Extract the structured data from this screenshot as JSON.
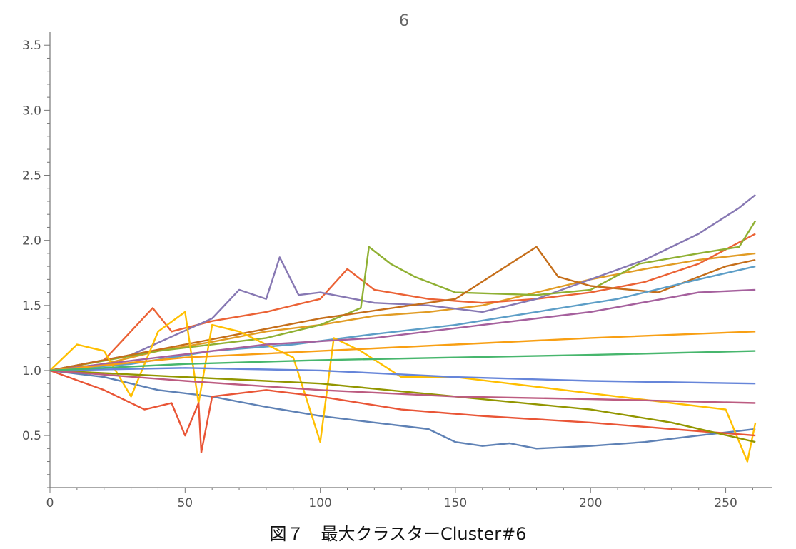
{
  "chart_data": {
    "type": "line",
    "title": "6",
    "xlabel": "",
    "ylabel": "",
    "xlim": [
      0,
      262
    ],
    "ylim": [
      0.1,
      3.6
    ],
    "xticks": [
      0,
      50,
      100,
      150,
      200,
      250
    ],
    "xtick_labels": [
      "0",
      "50",
      "100",
      "150",
      "200",
      "250"
    ],
    "yticks": [
      0.5,
      1.0,
      1.5,
      2.0,
      2.5,
      3.0,
      3.5
    ],
    "ytick_labels": [
      "0.5",
      "1.0",
      "1.5",
      "2.0",
      "2.5",
      "3.0",
      "3.5"
    ],
    "grid": false,
    "legend": "none",
    "palette": [
      "#5e81b5",
      "#e19c24",
      "#8fb032",
      "#eb6235",
      "#8778b3",
      "#c56e1a",
      "#5d9ec7",
      "#ffbf00",
      "#a5609d",
      "#929600",
      "#e95536",
      "#6685d9",
      "#f89f13",
      "#bc5b80",
      "#47b66d"
    ],
    "series": [
      {
        "color": "#e19c24",
        "values": [
          [
            0,
            1.0
          ],
          [
            20,
            1.05
          ],
          [
            40,
            1.15
          ],
          [
            60,
            1.22
          ],
          [
            80,
            1.3
          ],
          [
            100,
            1.35
          ],
          [
            120,
            1.42
          ],
          [
            140,
            1.45
          ],
          [
            160,
            1.5
          ],
          [
            180,
            1.6
          ],
          [
            200,
            1.7
          ],
          [
            220,
            1.78
          ],
          [
            240,
            1.85
          ],
          [
            261,
            1.9
          ]
        ]
      },
      {
        "color": "#eb6235",
        "values": [
          [
            0,
            1.0
          ],
          [
            20,
            1.08
          ],
          [
            38,
            1.48
          ],
          [
            45,
            1.3
          ],
          [
            60,
            1.38
          ],
          [
            80,
            1.45
          ],
          [
            100,
            1.55
          ],
          [
            110,
            1.78
          ],
          [
            120,
            1.62
          ],
          [
            140,
            1.55
          ],
          [
            160,
            1.52
          ],
          [
            180,
            1.55
          ],
          [
            200,
            1.6
          ],
          [
            220,
            1.68
          ],
          [
            240,
            1.82
          ],
          [
            261,
            2.05
          ]
        ]
      },
      {
        "color": "#8778b3",
        "values": [
          [
            0,
            1.0
          ],
          [
            30,
            1.12
          ],
          [
            60,
            1.4
          ],
          [
            70,
            1.62
          ],
          [
            80,
            1.55
          ],
          [
            85,
            1.87
          ],
          [
            92,
            1.58
          ],
          [
            100,
            1.6
          ],
          [
            120,
            1.52
          ],
          [
            140,
            1.5
          ],
          [
            160,
            1.45
          ],
          [
            180,
            1.55
          ],
          [
            200,
            1.7
          ],
          [
            220,
            1.85
          ],
          [
            240,
            2.05
          ],
          [
            255,
            2.25
          ],
          [
            261,
            2.35
          ]
        ]
      },
      {
        "color": "#8fb032",
        "values": [
          [
            0,
            1.0
          ],
          [
            40,
            1.15
          ],
          [
            80,
            1.25
          ],
          [
            100,
            1.35
          ],
          [
            115,
            1.48
          ],
          [
            118,
            1.95
          ],
          [
            126,
            1.82
          ],
          [
            135,
            1.72
          ],
          [
            150,
            1.6
          ],
          [
            180,
            1.58
          ],
          [
            200,
            1.62
          ],
          [
            218,
            1.82
          ],
          [
            240,
            1.9
          ],
          [
            255,
            1.95
          ],
          [
            261,
            2.15
          ]
        ]
      },
      {
        "color": "#c56e1a",
        "values": [
          [
            0,
            1.0
          ],
          [
            50,
            1.2
          ],
          [
            100,
            1.4
          ],
          [
            150,
            1.55
          ],
          [
            165,
            1.75
          ],
          [
            180,
            1.95
          ],
          [
            188,
            1.72
          ],
          [
            200,
            1.65
          ],
          [
            225,
            1.6
          ],
          [
            250,
            1.8
          ],
          [
            261,
            1.85
          ]
        ]
      },
      {
        "color": "#5e81b5",
        "values": [
          [
            0,
            1.0
          ],
          [
            20,
            0.95
          ],
          [
            40,
            0.85
          ],
          [
            60,
            0.8
          ],
          [
            80,
            0.72
          ],
          [
            100,
            0.65
          ],
          [
            120,
            0.6
          ],
          [
            140,
            0.55
          ],
          [
            150,
            0.45
          ],
          [
            160,
            0.42
          ],
          [
            170,
            0.44
          ],
          [
            180,
            0.4
          ],
          [
            200,
            0.42
          ],
          [
            220,
            0.45
          ],
          [
            240,
            0.5
          ],
          [
            261,
            0.55
          ]
        ]
      },
      {
        "color": "#5d9ec7",
        "values": [
          [
            0,
            1.0
          ],
          [
            30,
            1.05
          ],
          [
            60,
            1.15
          ],
          [
            90,
            1.2
          ],
          [
            120,
            1.28
          ],
          [
            150,
            1.35
          ],
          [
            180,
            1.45
          ],
          [
            210,
            1.55
          ],
          [
            240,
            1.7
          ],
          [
            261,
            1.8
          ]
        ]
      },
      {
        "color": "#ffbf00",
        "values": [
          [
            0,
            1.0
          ],
          [
            10,
            1.2
          ],
          [
            20,
            1.15
          ],
          [
            30,
            0.8
          ],
          [
            40,
            1.3
          ],
          [
            50,
            1.45
          ],
          [
            55,
            0.75
          ],
          [
            60,
            1.35
          ],
          [
            70,
            1.3
          ],
          [
            80,
            1.2
          ],
          [
            90,
            1.1
          ],
          [
            100,
            0.45
          ],
          [
            105,
            1.25
          ],
          [
            115,
            1.15
          ],
          [
            130,
            0.95
          ],
          [
            150,
            0.95
          ],
          [
            170,
            0.9
          ],
          [
            190,
            0.85
          ],
          [
            210,
            0.8
          ],
          [
            230,
            0.75
          ],
          [
            250,
            0.7
          ],
          [
            258,
            0.3
          ],
          [
            261,
            0.6
          ]
        ]
      },
      {
        "color": "#e95536",
        "values": [
          [
            0,
            1.0
          ],
          [
            20,
            0.85
          ],
          [
            35,
            0.7
          ],
          [
            45,
            0.75
          ],
          [
            50,
            0.5
          ],
          [
            55,
            0.75
          ],
          [
            56,
            0.37
          ],
          [
            60,
            0.8
          ],
          [
            80,
            0.85
          ],
          [
            100,
            0.8
          ],
          [
            130,
            0.7
          ],
          [
            160,
            0.65
          ],
          [
            200,
            0.6
          ],
          [
            230,
            0.55
          ],
          [
            261,
            0.5
          ]
        ]
      },
      {
        "color": "#a5609d",
        "values": [
          [
            0,
            1.0
          ],
          [
            40,
            1.1
          ],
          [
            80,
            1.2
          ],
          [
            120,
            1.25
          ],
          [
            160,
            1.35
          ],
          [
            200,
            1.45
          ],
          [
            240,
            1.6
          ],
          [
            261,
            1.62
          ]
        ]
      },
      {
        "color": "#929600",
        "values": [
          [
            0,
            1.0
          ],
          [
            50,
            0.95
          ],
          [
            100,
            0.9
          ],
          [
            150,
            0.8
          ],
          [
            200,
            0.7
          ],
          [
            230,
            0.6
          ],
          [
            261,
            0.45
          ]
        ]
      },
      {
        "color": "#6685d9",
        "values": [
          [
            0,
            1.0
          ],
          [
            50,
            1.02
          ],
          [
            100,
            1.0
          ],
          [
            150,
            0.95
          ],
          [
            200,
            0.92
          ],
          [
            261,
            0.9
          ]
        ]
      },
      {
        "color": "#f89f13",
        "values": [
          [
            0,
            1.0
          ],
          [
            50,
            1.1
          ],
          [
            100,
            1.15
          ],
          [
            150,
            1.2
          ],
          [
            200,
            1.25
          ],
          [
            261,
            1.3
          ]
        ]
      },
      {
        "color": "#bc5b80",
        "values": [
          [
            0,
            1.0
          ],
          [
            50,
            0.92
          ],
          [
            100,
            0.85
          ],
          [
            150,
            0.8
          ],
          [
            200,
            0.78
          ],
          [
            261,
            0.75
          ]
        ]
      },
      {
        "color": "#47b66d",
        "values": [
          [
            0,
            1.0
          ],
          [
            50,
            1.05
          ],
          [
            100,
            1.08
          ],
          [
            150,
            1.1
          ],
          [
            200,
            1.12
          ],
          [
            261,
            1.15
          ]
        ]
      }
    ]
  },
  "caption": "図７　最大クラスターCluster#6"
}
